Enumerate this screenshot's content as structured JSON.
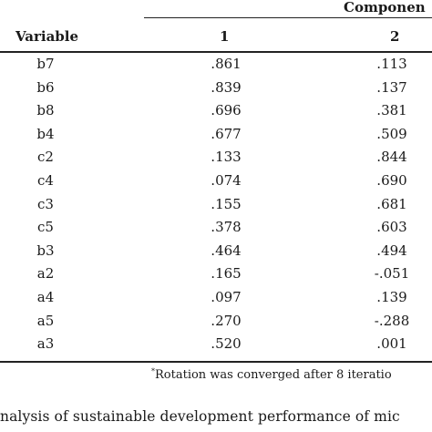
{
  "table": {
    "component_header": "Componen",
    "columns": {
      "variable": "Variable",
      "c1": "1",
      "c2": "2"
    },
    "rows": [
      {
        "var": "b7",
        "c1": ".861",
        "c2": ".113"
      },
      {
        "var": "b6",
        "c1": ".839",
        "c2": ".137"
      },
      {
        "var": "b8",
        "c1": ".696",
        "c2": ".381"
      },
      {
        "var": "b4",
        "c1": ".677",
        "c2": ".509"
      },
      {
        "var": "c2",
        "c1": ".133",
        "c2": ".844"
      },
      {
        "var": "c4",
        "c1": ".074",
        "c2": ".690"
      },
      {
        "var": "c3",
        "c1": ".155",
        "c2": ".681"
      },
      {
        "var": "c5",
        "c1": ".378",
        "c2": ".603"
      },
      {
        "var": "b3",
        "c1": ".464",
        "c2": ".494"
      },
      {
        "var": "a2",
        "c1": ".165",
        "c2": "-.051"
      },
      {
        "var": "a4",
        "c1": ".097",
        "c2": ".139"
      },
      {
        "var": "a5",
        "c1": ".270",
        "c2": "-.288"
      },
      {
        "var": "a3",
        "c1": ".520",
        "c2": ".001"
      }
    ],
    "footnote_mark": "*",
    "footnote": "Rotation was converged after 8 iteratio"
  },
  "caption": "nalysis of sustainable development performance of mic"
}
